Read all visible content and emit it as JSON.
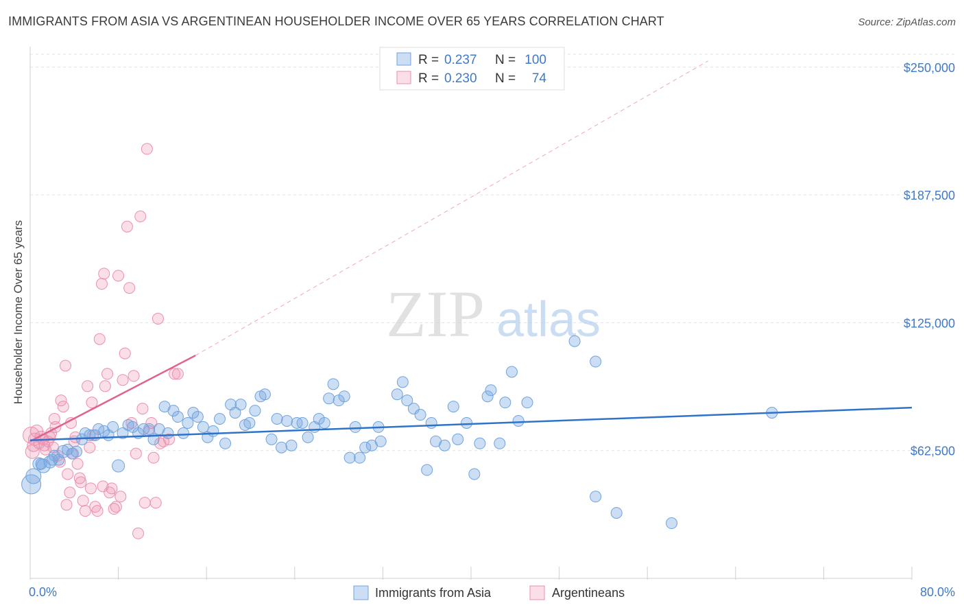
{
  "header": {
    "title": "IMMIGRANTS FROM ASIA VS ARGENTINEAN HOUSEHOLDER INCOME OVER 65 YEARS CORRELATION CHART",
    "source": "Source: ZipAtlas.com"
  },
  "watermark": {
    "zip": "ZIP",
    "atlas": "atlas"
  },
  "colors": {
    "blue": "#6fa3dc",
    "blue_fill": "rgba(120,168,225,0.38)",
    "blue_line": "#2f72c9",
    "pink": "#ea8fae",
    "pink_fill": "rgba(240,150,180,0.30)",
    "pink_line": "#e0628f",
    "axis_text": "#3f79c8",
    "grid": "#e4e4e4"
  },
  "legend": {
    "rows": [
      {
        "r_label": "R =",
        "r_value": "0.237",
        "n_label": "N =",
        "n_value": "100"
      },
      {
        "r_label": "R =",
        "r_value": "0.230",
        "n_label": "N =",
        "n_value": "74"
      }
    ],
    "bottom": [
      "Immigrants from Asia",
      "Argentineans"
    ]
  },
  "chart_data": {
    "type": "scatter",
    "title": "IMMIGRANTS FROM ASIA VS ARGENTINEAN HOUSEHOLDER INCOME OVER 65 YEARS CORRELATION CHART",
    "xlabel": "",
    "ylabel": "Householder Income Over 65 years",
    "xlim": [
      0,
      80
    ],
    "ylim": [
      0,
      260000
    ],
    "x_tick_labels": [
      "0.0%",
      "80.0%"
    ],
    "y_ticks": [
      62500,
      125000,
      187500,
      250000
    ],
    "y_tick_labels": [
      "$62,500",
      "$125,000",
      "$187,500",
      "$250,000"
    ],
    "grid": true,
    "series": [
      {
        "name": "Immigrants from Asia",
        "r": 0.237,
        "n": 100,
        "trend": {
          "x0": 0,
          "y0": 67500,
          "x1": 80,
          "y1": 83500
        },
        "points": [
          [
            0.1,
            46000,
            14
          ],
          [
            0.3,
            50000,
            11
          ],
          [
            0.8,
            56000,
            9
          ],
          [
            1.2,
            55000,
            10
          ],
          [
            1.8,
            57000,
            9
          ],
          [
            2.2,
            60000,
            8
          ],
          [
            2.6,
            58000,
            8
          ],
          [
            3.0,
            62000,
            9
          ],
          [
            3.4,
            63000,
            8
          ],
          [
            3.8,
            61000,
            8
          ],
          [
            4.2,
            62000,
            8
          ],
          [
            4.7,
            68000,
            8
          ],
          [
            5.0,
            71000,
            8
          ],
          [
            5.4,
            70000,
            8
          ],
          [
            5.9,
            70000,
            8
          ],
          [
            6.2,
            73000,
            8
          ],
          [
            6.7,
            72000,
            8
          ],
          [
            7.1,
            70000,
            8
          ],
          [
            7.5,
            74000,
            8
          ],
          [
            8.0,
            55000,
            9
          ],
          [
            8.4,
            71000,
            8
          ],
          [
            8.9,
            75000,
            8
          ],
          [
            9.3,
            74000,
            8
          ],
          [
            9.8,
            71000,
            8
          ],
          [
            10.3,
            73000,
            8
          ],
          [
            10.8,
            73000,
            8
          ],
          [
            11.2,
            68000,
            8
          ],
          [
            11.7,
            73000,
            8
          ],
          [
            12.2,
            84000,
            8
          ],
          [
            12.5,
            71000,
            8
          ],
          [
            13.0,
            82000,
            8
          ],
          [
            13.4,
            79000,
            8
          ],
          [
            13.9,
            71000,
            8
          ],
          [
            14.3,
            76000,
            8
          ],
          [
            14.8,
            81000,
            8
          ],
          [
            15.2,
            79000,
            8
          ],
          [
            15.7,
            74000,
            8
          ],
          [
            16.1,
            69000,
            8
          ],
          [
            16.6,
            72000,
            8
          ],
          [
            17.2,
            78000,
            8
          ],
          [
            17.7,
            66000,
            8
          ],
          [
            18.2,
            85000,
            8
          ],
          [
            18.6,
            81000,
            8
          ],
          [
            19.1,
            85000,
            8
          ],
          [
            19.5,
            75000,
            8
          ],
          [
            19.9,
            76000,
            8
          ],
          [
            20.4,
            82000,
            8
          ],
          [
            20.9,
            89000,
            8
          ],
          [
            21.3,
            90000,
            8
          ],
          [
            21.9,
            68000,
            8
          ],
          [
            22.4,
            78000,
            8
          ],
          [
            22.8,
            64000,
            8
          ],
          [
            23.3,
            77000,
            8
          ],
          [
            23.7,
            65000,
            8
          ],
          [
            24.2,
            76000,
            8
          ],
          [
            24.7,
            76000,
            8
          ],
          [
            25.2,
            69000,
            8
          ],
          [
            25.8,
            74000,
            8
          ],
          [
            26.2,
            78000,
            8
          ],
          [
            26.7,
            76000,
            8
          ],
          [
            27.1,
            88000,
            8
          ],
          [
            27.5,
            95000,
            8
          ],
          [
            28.0,
            87000,
            8
          ],
          [
            28.5,
            89000,
            8
          ],
          [
            29.0,
            59000,
            8
          ],
          [
            29.5,
            74000,
            8
          ],
          [
            29.9,
            59000,
            8
          ],
          [
            30.4,
            64000,
            8
          ],
          [
            31.0,
            65000,
            8
          ],
          [
            31.6,
            74000,
            8
          ],
          [
            31.8,
            67000,
            8
          ],
          [
            33.3,
            90000,
            8
          ],
          [
            33.8,
            96000,
            8
          ],
          [
            34.2,
            87000,
            8
          ],
          [
            34.8,
            83000,
            8
          ],
          [
            35.4,
            80000,
            8
          ],
          [
            36.0,
            53000,
            8
          ],
          [
            36.4,
            76000,
            8
          ],
          [
            36.8,
            67000,
            8
          ],
          [
            37.6,
            65000,
            8
          ],
          [
            38.4,
            84000,
            8
          ],
          [
            38.8,
            68000,
            8
          ],
          [
            39.6,
            76000,
            8
          ],
          [
            40.3,
            51000,
            8
          ],
          [
            40.8,
            66000,
            8
          ],
          [
            41.5,
            89000,
            8
          ],
          [
            41.8,
            92000,
            8
          ],
          [
            42.6,
            66000,
            8
          ],
          [
            43.1,
            86000,
            8
          ],
          [
            43.7,
            101000,
            8
          ],
          [
            44.3,
            77000,
            8
          ],
          [
            45.1,
            86000,
            8
          ],
          [
            49.4,
            116000,
            8
          ],
          [
            51.3,
            106000,
            8
          ],
          [
            51.3,
            40000,
            8
          ],
          [
            53.2,
            32000,
            8
          ],
          [
            58.2,
            27000,
            8
          ],
          [
            67.3,
            81000,
            8
          ],
          [
            1.0,
            56000,
            8
          ],
          [
            2.0,
            58000,
            8
          ]
        ]
      },
      {
        "name": "Argentineans",
        "r": 0.23,
        "n": 74,
        "trend": {
          "x0": 0,
          "y0": 67000,
          "x1": 15,
          "y1": 109000
        },
        "trend_dashed": {
          "x0": 15,
          "y0": 109000,
          "x1": 61.5,
          "y1": 253000
        },
        "points": [
          [
            0.1,
            70000,
            12
          ],
          [
            0.2,
            62000,
            10
          ],
          [
            0.3,
            65000,
            9
          ],
          [
            0.4,
            68000,
            9
          ],
          [
            0.6,
            72000,
            9
          ],
          [
            0.8,
            66000,
            8
          ],
          [
            1.0,
            69000,
            9
          ],
          [
            1.2,
            68000,
            8
          ],
          [
            1.3,
            65000,
            8
          ],
          [
            1.4,
            63000,
            8
          ],
          [
            1.6,
            67000,
            8
          ],
          [
            1.8,
            69000,
            8
          ],
          [
            1.9,
            71000,
            8
          ],
          [
            2.1,
            64000,
            8
          ],
          [
            2.3,
            74000,
            8
          ],
          [
            2.5,
            60000,
            8
          ],
          [
            2.7,
            57000,
            8
          ],
          [
            2.8,
            87000,
            8
          ],
          [
            3.0,
            84000,
            8
          ],
          [
            3.2,
            104000,
            8
          ],
          [
            3.4,
            51000,
            8
          ],
          [
            3.6,
            42000,
            8
          ],
          [
            3.7,
            76000,
            8
          ],
          [
            3.9,
            61000,
            8
          ],
          [
            4.1,
            69000,
            8
          ],
          [
            4.3,
            56000,
            8
          ],
          [
            4.5,
            49000,
            8
          ],
          [
            4.6,
            47000,
            8
          ],
          [
            4.8,
            38000,
            8
          ],
          [
            5.0,
            33000,
            8
          ],
          [
            5.2,
            94000,
            8
          ],
          [
            5.4,
            64000,
            8
          ],
          [
            5.6,
            86000,
            8
          ],
          [
            5.7,
            70000,
            8
          ],
          [
            5.9,
            35000,
            8
          ],
          [
            6.1,
            33000,
            8
          ],
          [
            6.3,
            117000,
            8
          ],
          [
            6.5,
            144000,
            8
          ],
          [
            6.7,
            149000,
            8
          ],
          [
            6.8,
            94000,
            8
          ],
          [
            7.0,
            100000,
            8
          ],
          [
            7.2,
            42000,
            8
          ],
          [
            7.4,
            44000,
            8
          ],
          [
            7.6,
            34000,
            8
          ],
          [
            7.8,
            35000,
            8
          ],
          [
            8.0,
            148000,
            8
          ],
          [
            8.2,
            40000,
            8
          ],
          [
            8.4,
            97000,
            8
          ],
          [
            8.6,
            110000,
            8
          ],
          [
            8.8,
            172000,
            8
          ],
          [
            9.0,
            142000,
            8
          ],
          [
            9.2,
            76000,
            8
          ],
          [
            9.4,
            99000,
            8
          ],
          [
            9.6,
            61000,
            8
          ],
          [
            9.8,
            22000,
            8
          ],
          [
            10.0,
            177000,
            8
          ],
          [
            10.2,
            83000,
            8
          ],
          [
            10.4,
            37000,
            8
          ],
          [
            10.6,
            210000,
            8
          ],
          [
            10.8,
            72000,
            8
          ],
          [
            11.0,
            76000,
            8
          ],
          [
            11.2,
            59000,
            8
          ],
          [
            11.4,
            37000,
            8
          ],
          [
            11.6,
            127000,
            8
          ],
          [
            11.8,
            66000,
            8
          ],
          [
            12.1,
            67000,
            8
          ],
          [
            12.6,
            68000,
            8
          ],
          [
            13.1,
            100000,
            8
          ],
          [
            13.4,
            100000,
            8
          ],
          [
            4.0,
            67000,
            8
          ],
          [
            2.2,
            78000,
            8
          ],
          [
            3.3,
            36000,
            8
          ],
          [
            5.5,
            44000,
            8
          ],
          [
            6.6,
            45000,
            8
          ]
        ]
      }
    ]
  }
}
